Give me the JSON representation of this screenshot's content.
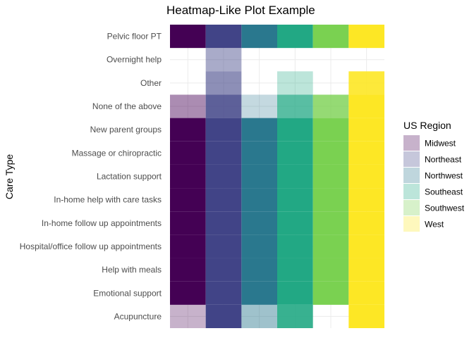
{
  "chart_data": {
    "type": "heatmap",
    "title": "Heatmap-Like Plot Example",
    "xlabel": "",
    "ylabel": "Care Type",
    "categories": [
      "Pelvic floor PT",
      "Overnight help",
      "Other",
      "None of the above",
      "New parent groups",
      "Massage or chiropractic",
      "Lactation support",
      "In-home help with care tasks",
      "In-home follow up appointments",
      "Hospital/office follow up appointments",
      "Help with meals",
      "Emotional support",
      "Acupuncture"
    ],
    "legend": {
      "title": "US Region",
      "position": "right",
      "items": [
        {
          "name": "Midwest",
          "color": "#440154"
        },
        {
          "name": "Northeast",
          "color": "#414487"
        },
        {
          "name": "Northwest",
          "color": "#2A788E"
        },
        {
          "name": "Southeast",
          "color": "#22A884"
        },
        {
          "name": "Southwest",
          "color": "#7AD151"
        },
        {
          "name": "West",
          "color": "#FDE725"
        }
      ]
    },
    "grid": true,
    "series": [
      {
        "name": "Midwest",
        "values": [
          1,
          0,
          0,
          0.45,
          1,
          1,
          1,
          1,
          1,
          1,
          1,
          1,
          0.3
        ]
      },
      {
        "name": "Northeast",
        "values": [
          1,
          0.45,
          0.6,
          0.85,
          1,
          1,
          1,
          1,
          1,
          1,
          1,
          1,
          1
        ]
      },
      {
        "name": "Northwest",
        "values": [
          1,
          0,
          0,
          0.28,
          1,
          1,
          1,
          1,
          1,
          1,
          1,
          1,
          0.45
        ]
      },
      {
        "name": "Southeast",
        "values": [
          1,
          0,
          0.3,
          0.75,
          1,
          1,
          1,
          1,
          1,
          1,
          1,
          1,
          0.9
        ]
      },
      {
        "name": "Southwest",
        "values": [
          1,
          0,
          0,
          0.8,
          1,
          1,
          1,
          1,
          1,
          1,
          1,
          1,
          0
        ]
      },
      {
        "name": "West",
        "values": [
          1,
          0,
          0.9,
          1,
          1,
          1,
          1,
          1,
          1,
          1,
          1,
          1,
          1
        ]
      }
    ]
  }
}
